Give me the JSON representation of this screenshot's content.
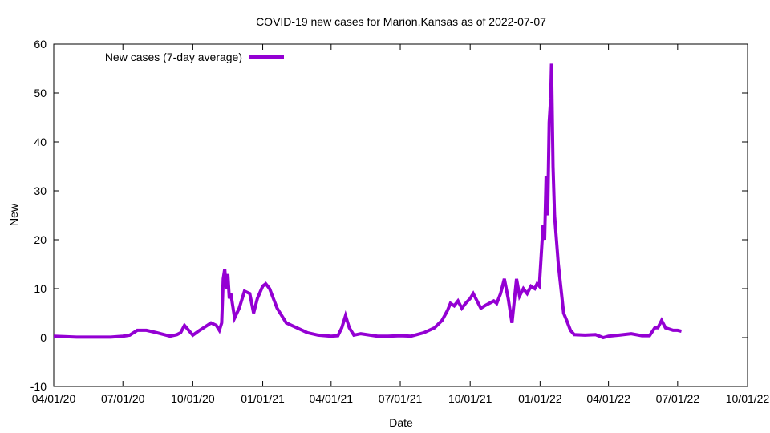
{
  "chart_data": {
    "type": "line",
    "title": "COVID-19 new cases for Marion,Kansas as of 2022-07-07",
    "xlabel": "Date",
    "ylabel": "New",
    "xlim": [
      "2020-04-01",
      "2022-10-01"
    ],
    "ylim": [
      -10,
      60
    ],
    "x_tick_labels": [
      "04/01/20",
      "07/01/20",
      "10/01/20",
      "01/01/21",
      "04/01/21",
      "07/01/21",
      "10/01/21",
      "01/01/22",
      "04/01/22",
      "07/01/22",
      "10/01/22"
    ],
    "y_ticks": [
      -10,
      0,
      10,
      20,
      30,
      40,
      50,
      60
    ],
    "grid": false,
    "legend_position": "top-left",
    "series": [
      {
        "name": "New cases (7-day average)",
        "color": "#9400d3",
        "x": [
          "2020-04-01",
          "2020-04-15",
          "2020-05-01",
          "2020-05-15",
          "2020-06-01",
          "2020-06-15",
          "2020-07-01",
          "2020-07-10",
          "2020-07-20",
          "2020-08-01",
          "2020-08-15",
          "2020-09-01",
          "2020-09-10",
          "2020-09-15",
          "2020-09-20",
          "2020-10-01",
          "2020-10-10",
          "2020-10-20",
          "2020-10-25",
          "2020-11-01",
          "2020-11-05",
          "2020-11-08",
          "2020-11-10",
          "2020-11-12",
          "2020-11-14",
          "2020-11-16",
          "2020-11-18",
          "2020-11-20",
          "2020-11-25",
          "2020-12-01",
          "2020-12-08",
          "2020-12-15",
          "2020-12-20",
          "2020-12-25",
          "2021-01-01",
          "2021-01-05",
          "2021-01-10",
          "2021-01-15",
          "2021-01-20",
          "2021-02-01",
          "2021-02-15",
          "2021-03-01",
          "2021-03-15",
          "2021-04-01",
          "2021-04-10",
          "2021-04-15",
          "2021-04-20",
          "2021-04-25",
          "2021-05-01",
          "2021-05-10",
          "2021-06-01",
          "2021-06-15",
          "2021-07-01",
          "2021-07-15",
          "2021-08-01",
          "2021-08-15",
          "2021-08-25",
          "2021-09-01",
          "2021-09-05",
          "2021-09-10",
          "2021-09-15",
          "2021-09-20",
          "2021-09-25",
          "2021-10-01",
          "2021-10-05",
          "2021-10-15",
          "2021-10-20",
          "2021-11-01",
          "2021-11-05",
          "2021-11-10",
          "2021-11-15",
          "2021-11-20",
          "2021-11-25",
          "2021-12-01",
          "2021-12-05",
          "2021-12-10",
          "2021-12-15",
          "2021-12-20",
          "2021-12-25",
          "2021-12-28",
          "2021-12-31",
          "2022-01-03",
          "2022-01-05",
          "2022-01-07",
          "2022-01-09",
          "2022-01-11",
          "2022-01-13",
          "2022-01-15",
          "2022-01-16",
          "2022-01-18",
          "2022-01-20",
          "2022-01-25",
          "2022-02-01",
          "2022-02-05",
          "2022-02-10",
          "2022-02-15",
          "2022-03-01",
          "2022-03-15",
          "2022-03-25",
          "2022-04-01",
          "2022-04-15",
          "2022-05-01",
          "2022-05-15",
          "2022-05-25",
          "2022-06-01",
          "2022-06-05",
          "2022-06-10",
          "2022-06-15",
          "2022-06-25",
          "2022-07-01",
          "2022-07-06"
        ],
        "y": [
          0.3,
          0.2,
          0.1,
          0.1,
          0.1,
          0.1,
          0.3,
          0.5,
          1.5,
          1.5,
          1.0,
          0.3,
          0.6,
          1.0,
          2.5,
          0.5,
          1.5,
          2.5,
          3.0,
          2.5,
          1.5,
          3.0,
          12.0,
          14.0,
          10.0,
          13.0,
          8.0,
          9.0,
          4.0,
          6.0,
          9.5,
          9.0,
          5.0,
          8.0,
          10.5,
          11.0,
          10.0,
          8.0,
          6.0,
          3.0,
          2.0,
          1.0,
          0.5,
          0.3,
          0.4,
          2.0,
          4.5,
          2.0,
          0.5,
          0.8,
          0.3,
          0.3,
          0.4,
          0.3,
          1.0,
          2.0,
          3.5,
          5.5,
          7.0,
          6.5,
          7.5,
          6.0,
          7.0,
          8.0,
          9.0,
          6.0,
          6.5,
          7.5,
          7.0,
          9.0,
          12.0,
          8.0,
          3.0,
          12.0,
          8.5,
          10.0,
          9.0,
          10.5,
          10.0,
          11.0,
          10.5,
          18.0,
          23.0,
          20.0,
          33.0,
          25.0,
          44.0,
          49.0,
          56.0,
          35.0,
          25.0,
          15.0,
          5.0,
          3.5,
          1.5,
          0.6,
          0.5,
          0.6,
          0.0,
          0.3,
          0.5,
          0.8,
          0.4,
          0.4,
          2.0,
          2.0,
          3.5,
          2.0,
          1.5,
          1.5,
          1.3
        ]
      }
    ]
  }
}
